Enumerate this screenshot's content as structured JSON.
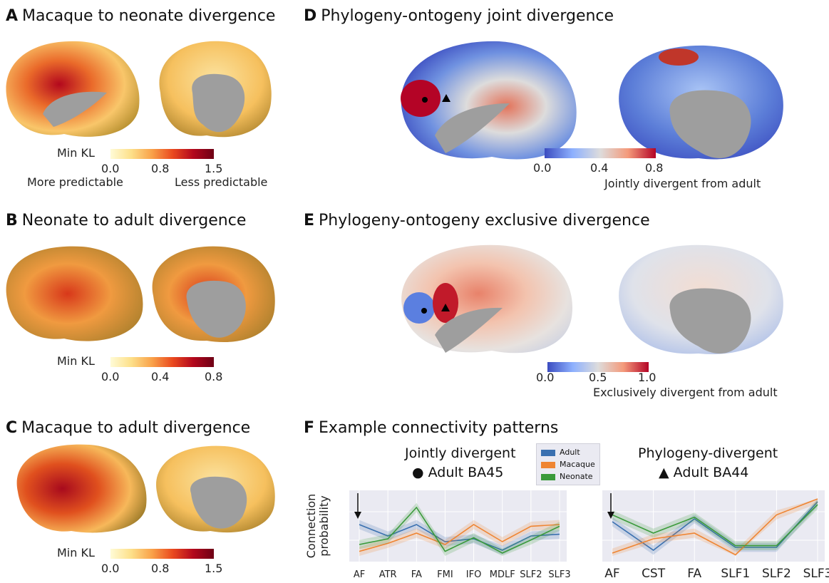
{
  "panels": {
    "a": {
      "letter": "A",
      "title": "Macaque to neonate divergence",
      "cb_label": "Min KL",
      "ticks": [
        "0.0",
        "0.8",
        "1.5"
      ],
      "left_note": "More predictable",
      "right_note": "Less predictable"
    },
    "b": {
      "letter": "B",
      "title": "Neonate to adult divergence",
      "cb_label": "Min KL",
      "ticks": [
        "0.0",
        "0.4",
        "0.8"
      ]
    },
    "c": {
      "letter": "C",
      "title": "Macaque to adult divergence",
      "cb_label": "Min KL",
      "ticks": [
        "0.0",
        "0.8",
        "1.5"
      ]
    },
    "d": {
      "letter": "D",
      "title": "Phylogeny-ontogeny joint divergence",
      "ticks": [
        "0.0",
        "0.4",
        "0.8"
      ],
      "note": "Jointly divergent from adult"
    },
    "e": {
      "letter": "E",
      "title": "Phylogeny-ontogeny exclusive divergence",
      "ticks": [
        "0.0",
        "0.5",
        "1.0"
      ],
      "note": "Exclusively divergent from adult"
    },
    "f": {
      "letter": "F",
      "title": "Example connectivity patterns"
    }
  },
  "chart_data": [
    {
      "type": "line",
      "title": "Jointly divergent",
      "subtitle": "● Adult BA45",
      "ylabel": "Connection probability",
      "categories": [
        "AF",
        "ATR",
        "FA",
        "FMI",
        "IFO",
        "MDLF",
        "SLF2",
        "SLF3"
      ],
      "ylim": [
        0,
        1
      ],
      "series": [
        {
          "name": "Adult",
          "color": "#3a70b0",
          "values": [
            0.55,
            0.35,
            0.55,
            0.25,
            0.3,
            0.1,
            0.35,
            0.38
          ]
        },
        {
          "name": "Macaque",
          "color": "#ef8533",
          "values": [
            0.08,
            0.22,
            0.4,
            0.2,
            0.55,
            0.25,
            0.52,
            0.55
          ]
        },
        {
          "name": "Neonate",
          "color": "#3a9a3a",
          "values": [
            0.2,
            0.3,
            0.85,
            0.08,
            0.32,
            0.05,
            0.28,
            0.52
          ]
        }
      ]
    },
    {
      "type": "line",
      "title": "Phylogeny-divergent",
      "subtitle": "▲ Adult BA44",
      "categories": [
        "AF",
        "CST",
        "FA",
        "SLF1",
        "SLF2",
        "SLF3"
      ],
      "ylim": [
        0,
        1
      ],
      "series": [
        {
          "name": "Adult",
          "color": "#3a70b0",
          "values": [
            0.6,
            0.1,
            0.65,
            0.15,
            0.15,
            0.95
          ]
        },
        {
          "name": "Macaque",
          "color": "#ef8533",
          "values": [
            0.05,
            0.3,
            0.4,
            0.02,
            0.72,
            1.0
          ]
        },
        {
          "name": "Neonate",
          "color": "#3a9a3a",
          "values": [
            0.72,
            0.4,
            0.68,
            0.18,
            0.18,
            0.9
          ]
        }
      ]
    }
  ],
  "legend": [
    "Adult",
    "Macaque",
    "Neonate"
  ]
}
